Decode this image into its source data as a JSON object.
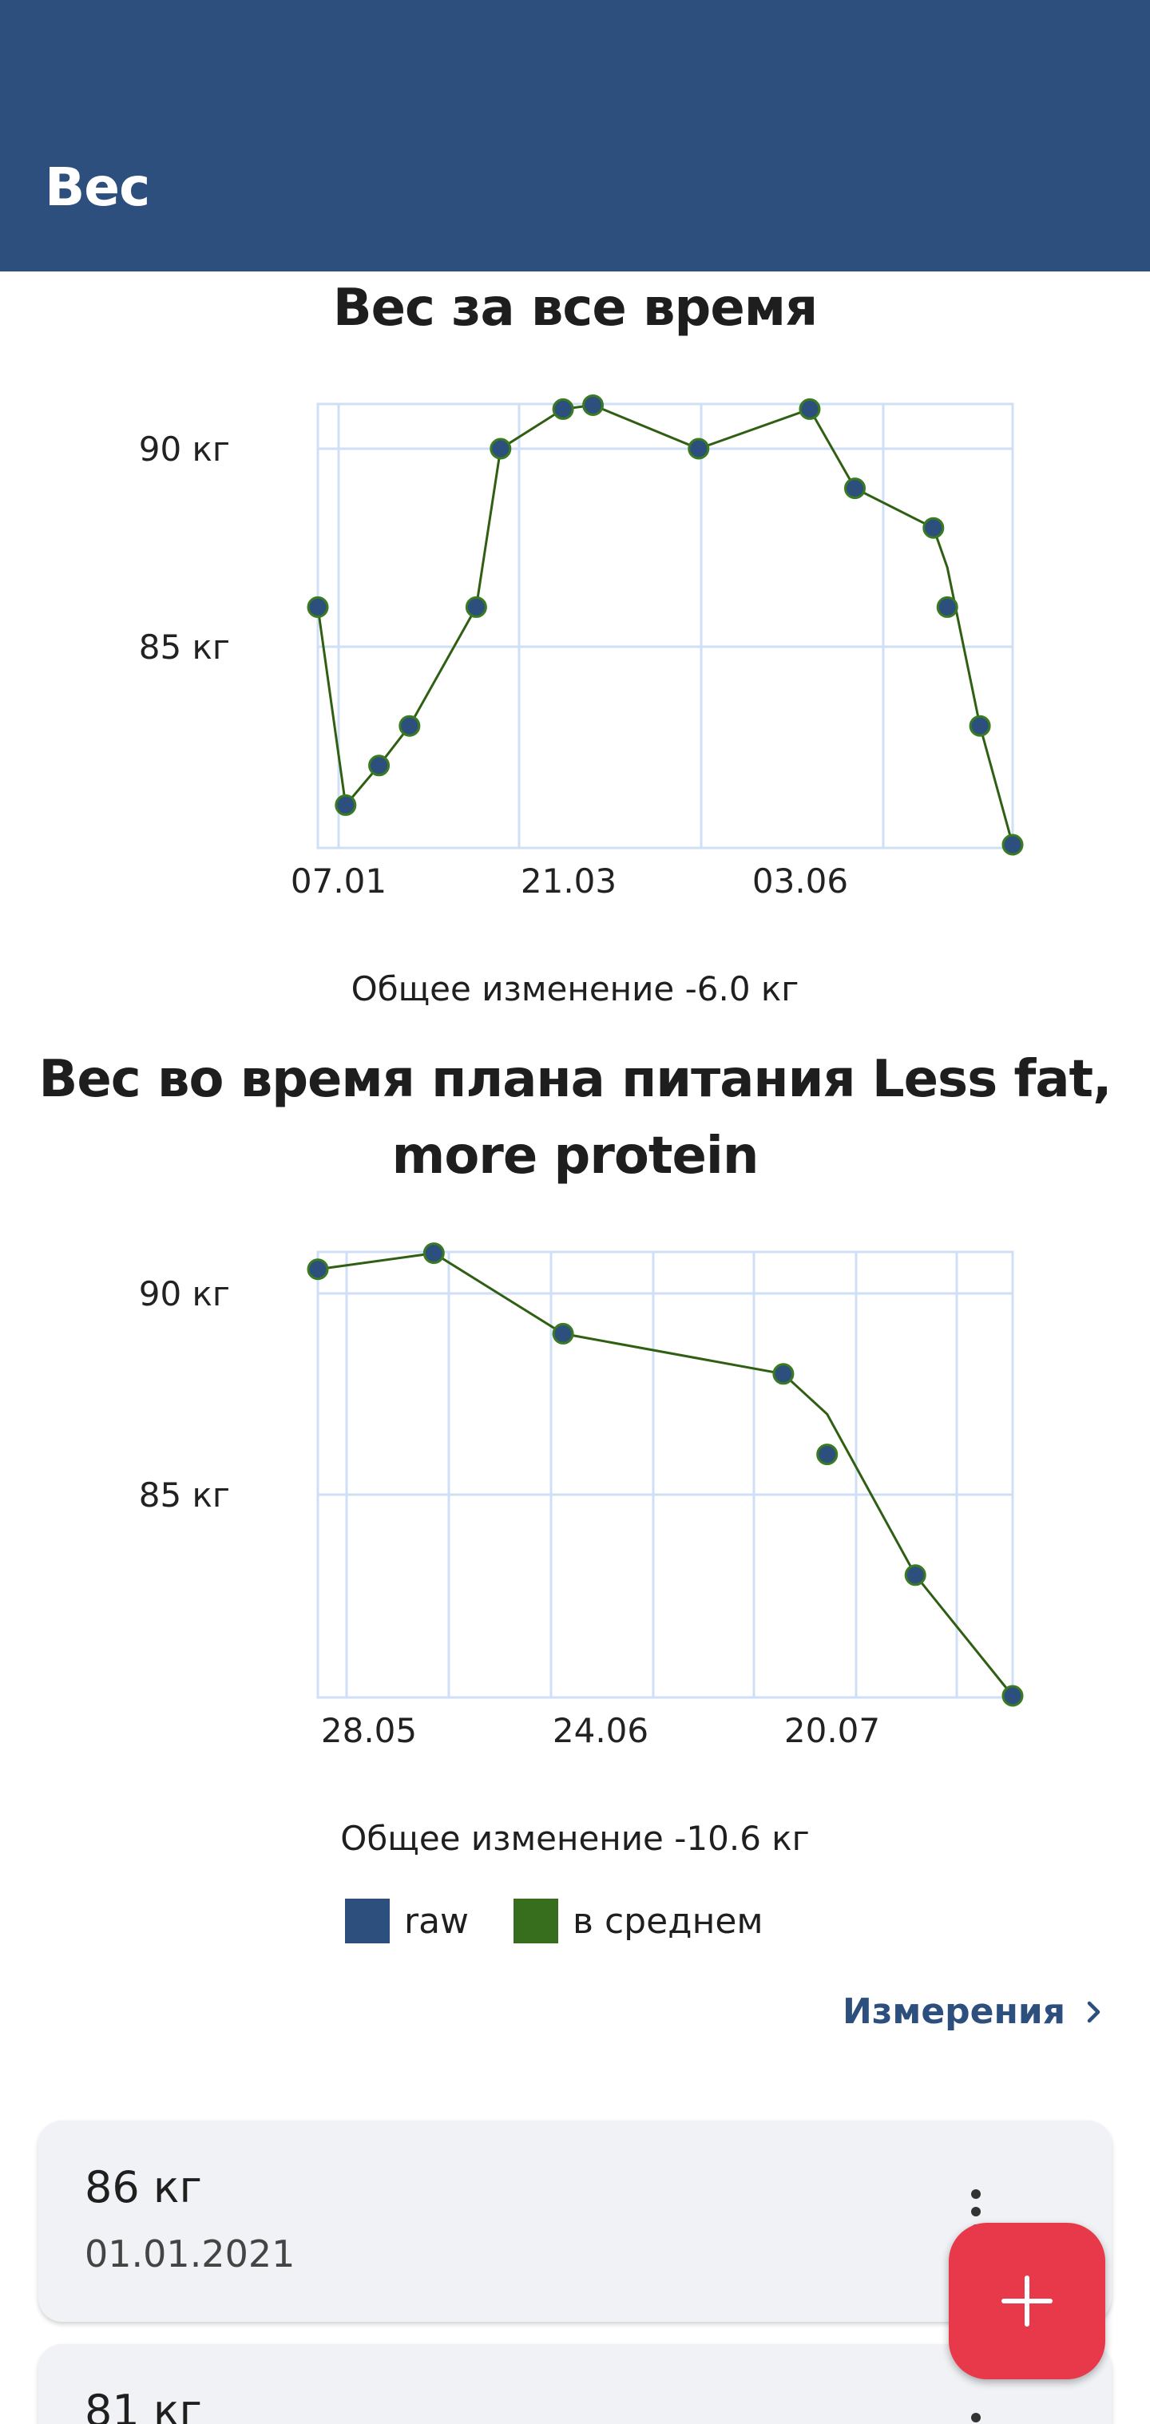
{
  "appbar": {
    "title": "Вес"
  },
  "charts": {
    "all_time": {
      "title": "Вес за все время",
      "change_text": "Общее изменение -6.0 кг"
    },
    "plan": {
      "title": "Вес во время плана питания Less fat, more protein",
      "change_text": "Общее изменение -10.6 кг"
    }
  },
  "legend": [
    {
      "label": "raw",
      "color": "#2c4f7e"
    },
    {
      "label": "в среднем",
      "color": "#376e1e"
    }
  ],
  "measurements_link": {
    "label": "Измерения",
    "icon": "chevron-right-icon"
  },
  "measurements": [
    {
      "weight": "86 кг",
      "date": "01.01.2021"
    },
    {
      "weight": "81 кг",
      "date": ""
    }
  ],
  "fab": {
    "icon": "plus-icon"
  },
  "colors": {
    "appbar": "#2c4f7e",
    "raw_points": "#2c4f7e",
    "average_line": "#376e1e",
    "grid": "#cfdff5",
    "fab": "#e8394a",
    "link": "#2c4f7e"
  },
  "chart_data": [
    {
      "type": "line",
      "title": "Вес за все время",
      "xlabel": "",
      "ylabel": "",
      "x_tick_labels": [
        "07.01",
        "21.03",
        "03.06"
      ],
      "y_tick_labels": [
        "90 кг",
        "85 кг"
      ],
      "y_ticks": [
        90,
        85
      ],
      "ylim": [
        80,
        91.1
      ],
      "x_index_range": [
        0,
        100
      ],
      "grid": true,
      "series": [
        {
          "name": "raw",
          "type": "scatter",
          "x": [
            0,
            4,
            8.8,
            13.2,
            22.8,
            26.3,
            35.3,
            39.6,
            54.8,
            70.8,
            77.3,
            88.6,
            90.6,
            95.3,
            100
          ],
          "y": [
            86,
            81,
            82,
            83,
            86,
            90,
            91,
            91.1,
            90,
            91,
            89,
            88,
            86,
            83,
            80
          ]
        },
        {
          "name": "в среднем",
          "type": "line",
          "x": [
            0,
            4,
            8.8,
            13.2,
            22.8,
            26.3,
            35.3,
            39.6,
            54.8,
            70.8,
            77.3,
            88.6,
            90.6,
            95.3,
            100
          ],
          "y": [
            86,
            81,
            82,
            83,
            86,
            90,
            91,
            91.1,
            90,
            91,
            89,
            88,
            87,
            83,
            80
          ]
        }
      ]
    },
    {
      "type": "line",
      "title": "Вес во время плана питания Less fat, more protein",
      "xlabel": "",
      "ylabel": "",
      "x_tick_labels": [
        "28.05",
        "24.06",
        "20.07"
      ],
      "y_tick_labels": [
        "90 кг",
        "85 кг"
      ],
      "y_ticks": [
        90,
        85
      ],
      "ylim": [
        80,
        91.1
      ],
      "x_index_range": [
        0,
        100
      ],
      "grid": true,
      "series": [
        {
          "name": "raw",
          "type": "scatter",
          "x": [
            0,
            16.7,
            35.3,
            67,
            73.3,
            86,
            100
          ],
          "y": [
            90.6,
            91,
            89,
            88,
            86,
            83,
            80
          ]
        },
        {
          "name": "в среднем",
          "type": "line",
          "x": [
            0,
            16.7,
            35.3,
            67,
            73.3,
            86,
            100
          ],
          "y": [
            90.6,
            91,
            89,
            88,
            87,
            83,
            80
          ]
        }
      ]
    }
  ]
}
